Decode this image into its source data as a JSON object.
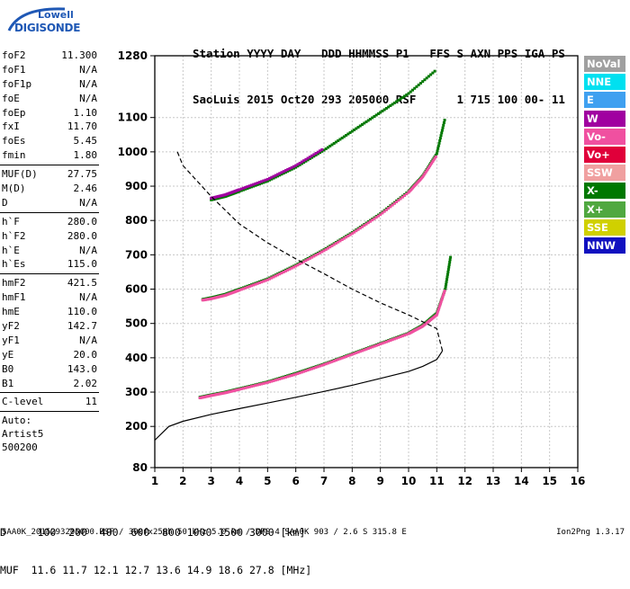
{
  "logo": {
    "top": "Lowell",
    "main": "DIGISONDE"
  },
  "header": {
    "line1": "Station YYYY DAY   DDD HHMMSS P1   FFS S AXN PPS IGA PS",
    "line2": "SaoLuis 2015 Oct20 293 205000 RSF      1 715 100 00- 11"
  },
  "params": [
    {
      "label": "foF2",
      "value": "11.300"
    },
    {
      "label": "foF1",
      "value": "N/A"
    },
    {
      "label": "foF1p",
      "value": "N/A"
    },
    {
      "label": "foE",
      "value": "N/A"
    },
    {
      "label": "foEp",
      "value": "1.10"
    },
    {
      "label": "fxI",
      "value": "11.70"
    },
    {
      "label": "foEs",
      "value": "5.45"
    },
    {
      "label": "fmin",
      "value": "1.80"
    },
    {
      "sep": true
    },
    {
      "label": "MUF(D)",
      "value": "27.75"
    },
    {
      "label": "M(D)",
      "value": "2.46"
    },
    {
      "label": "D",
      "value": "N/A"
    },
    {
      "sep": true
    },
    {
      "label": "h`F",
      "value": "280.0"
    },
    {
      "label": "h`F2",
      "value": "280.0"
    },
    {
      "label": "h`E",
      "value": "N/A"
    },
    {
      "label": "h`Es",
      "value": "115.0"
    },
    {
      "sep": true
    },
    {
      "label": "hmF2",
      "value": "421.5"
    },
    {
      "label": "hmF1",
      "value": "N/A"
    },
    {
      "label": "hmE",
      "value": "110.0"
    },
    {
      "label": "yF2",
      "value": "142.7"
    },
    {
      "label": "yF1",
      "value": "N/A"
    },
    {
      "label": "yE",
      "value": "20.0"
    },
    {
      "label": "B0",
      "value": "143.0"
    },
    {
      "label": "B1",
      "value": "2.02"
    },
    {
      "sep": true
    },
    {
      "label": "C-level",
      "value": "11"
    },
    {
      "sep": true
    }
  ],
  "auto": [
    "Auto:",
    "Artist5",
    "500200"
  ],
  "legend": [
    {
      "label": "NoVal",
      "color": "#a0a0a0"
    },
    {
      "label": "NNE",
      "color": "#00e0f0"
    },
    {
      "label": "E",
      "color": "#3fa0f0"
    },
    {
      "label": "W",
      "color": "#a000a0"
    },
    {
      "label": "Vo-",
      "color": "#f050a0"
    },
    {
      "label": "Vo+",
      "color": "#e0003a"
    },
    {
      "label": "SSW",
      "color": "#f0a0a0"
    },
    {
      "label": "X-",
      "color": "#007800"
    },
    {
      "label": "X+",
      "color": "#50a840"
    },
    {
      "label": "SSE",
      "color": "#d0d000"
    },
    {
      "label": "NNW",
      "color": "#1010c0"
    }
  ],
  "bottom": {
    "line1": "D     100  200  400  600  800 1000 1500 3000 [km]",
    "line2": "MUF  11.6 11.7 12.1 12.7 13.6 14.9 18.6 27.8 [MHz]"
  },
  "footer": "SAA0K_2015293205000.RSF / 300fx256h 50 kHz 5.0 km / DPS-4 SAA0K 903 / 2.6 S 315.8 E",
  "footer_right": "Ion2Png 1.3.17",
  "chart_data": {
    "type": "scatter",
    "xlim": [
      1,
      16
    ],
    "ylim": [
      80,
      1280
    ],
    "x_ticks": [
      1,
      2,
      3,
      4,
      5,
      6,
      7,
      8,
      9,
      10,
      11,
      12,
      13,
      14,
      15,
      16
    ],
    "y_ticks": [
      80,
      200,
      300,
      400,
      500,
      600,
      700,
      800,
      900,
      1000,
      1100,
      1280
    ],
    "grid": true,
    "series": [
      {
        "name": "X-",
        "color": "#007800",
        "x": [
          2.6,
          3.0,
          3.5,
          4.0,
          5.0,
          6.0,
          7.0,
          8.0,
          9.0,
          10.0,
          10.5,
          11.0,
          11.3,
          11.5
        ],
        "y": [
          285,
          292,
          300,
          310,
          330,
          355,
          382,
          412,
          442,
          472,
          495,
          530,
          600,
          700
        ]
      },
      {
        "name": "Vo-",
        "color": "#f050a0",
        "x": [
          2.6,
          3.0,
          3.5,
          4.0,
          5.0,
          6.0,
          7.0,
          8.0,
          9.0,
          10.0,
          10.5,
          11.0,
          11.3
        ],
        "y": [
          283,
          290,
          298,
          308,
          328,
          352,
          380,
          410,
          440,
          470,
          492,
          525,
          600
        ]
      },
      {
        "name": "X-",
        "color": "#007800",
        "x": [
          2.7,
          3.0,
          3.5,
          4.0,
          5.0,
          6.0,
          7.0,
          8.0,
          9.0,
          10.0,
          10.5,
          11.0,
          11.3
        ],
        "y": [
          570,
          575,
          585,
          600,
          630,
          670,
          715,
          765,
          820,
          885,
          930,
          995,
          1100
        ]
      },
      {
        "name": "Vo-",
        "color": "#f050a0",
        "x": [
          2.7,
          3.0,
          3.5,
          4.0,
          5.0,
          6.0,
          7.0,
          8.0,
          9.0,
          10.0,
          10.5,
          11.0
        ],
        "y": [
          568,
          572,
          582,
          597,
          627,
          667,
          712,
          762,
          817,
          882,
          927,
          990
        ]
      },
      {
        "name": "X-",
        "color": "#007800",
        "x": [
          3.0,
          3.5,
          4.0,
          5.0,
          6.0,
          7.0,
          8.0,
          9.0,
          10.0,
          11.0
        ],
        "y": [
          860,
          870,
          885,
          915,
          955,
          1005,
          1060,
          1115,
          1170,
          1240
        ]
      },
      {
        "name": "W",
        "color": "#a000a0",
        "x": [
          3.0,
          3.5,
          4.0,
          5.0,
          6.0,
          7.0
        ],
        "y": [
          865,
          875,
          890,
          920,
          960,
          1010
        ]
      }
    ],
    "profile": {
      "x": [
        1.0,
        1.5,
        2.0,
        3.0,
        4.0,
        5.0,
        6.0,
        7.0,
        8.0,
        9.0,
        10.0,
        10.5,
        11.0,
        11.2
      ],
      "y": [
        160,
        200,
        215,
        235,
        252,
        268,
        285,
        302,
        320,
        340,
        360,
        375,
        395,
        420
      ]
    },
    "muf_curve": {
      "x": [
        1.8,
        2.0,
        3.0,
        4.0,
        5.0,
        6.0,
        7.0,
        8.0,
        9.0,
        10.0,
        10.5,
        11.0,
        11.2
      ],
      "y": [
        1000,
        960,
        870,
        790,
        735,
        688,
        645,
        600,
        560,
        525,
        505,
        485,
        420
      ]
    }
  }
}
